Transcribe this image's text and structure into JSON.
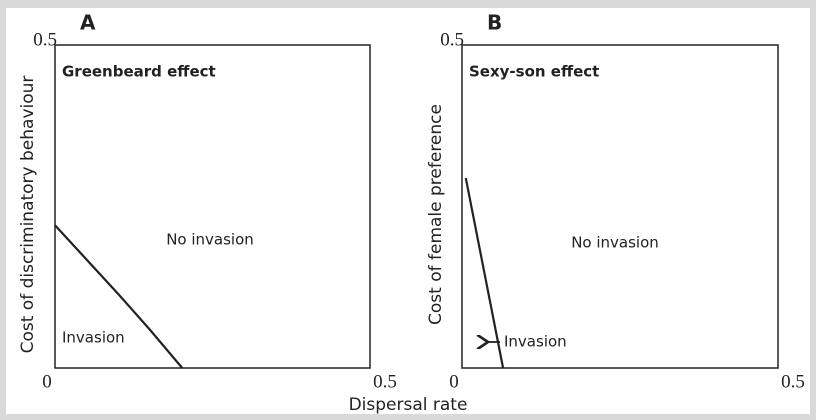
{
  "xlabel": "Dispersal rate",
  "chart_data": [
    {
      "type": "line",
      "panel": "A",
      "title": "Greenbeard effect",
      "ylabel": "Cost of discriminatory behaviour",
      "x": [
        0,
        0.05,
        0.1,
        0.15,
        0.202
      ],
      "values": [
        0.221,
        0.168,
        0.115,
        0.06,
        0
      ],
      "color": "#222222",
      "xlim": [
        0,
        0.5
      ],
      "ylim": [
        0,
        0.5
      ],
      "xticks": [
        0,
        0.5
      ],
      "yticks": [
        0.5
      ],
      "annotations": [
        "No invasion",
        "Invasion"
      ]
    },
    {
      "type": "line",
      "panel": "B",
      "title": "Sexy-son effect",
      "ylabel": "Cost of female preference",
      "x": [
        0.006,
        0.065
      ],
      "values": [
        0.294,
        0
      ],
      "color": "#222222",
      "xlim": [
        0,
        0.5
      ],
      "ylim": [
        0,
        0.5
      ],
      "xticks": [
        0,
        0.5
      ],
      "yticks": [
        0.5
      ],
      "annotations": [
        "No invasion",
        "Invasion"
      ]
    }
  ]
}
